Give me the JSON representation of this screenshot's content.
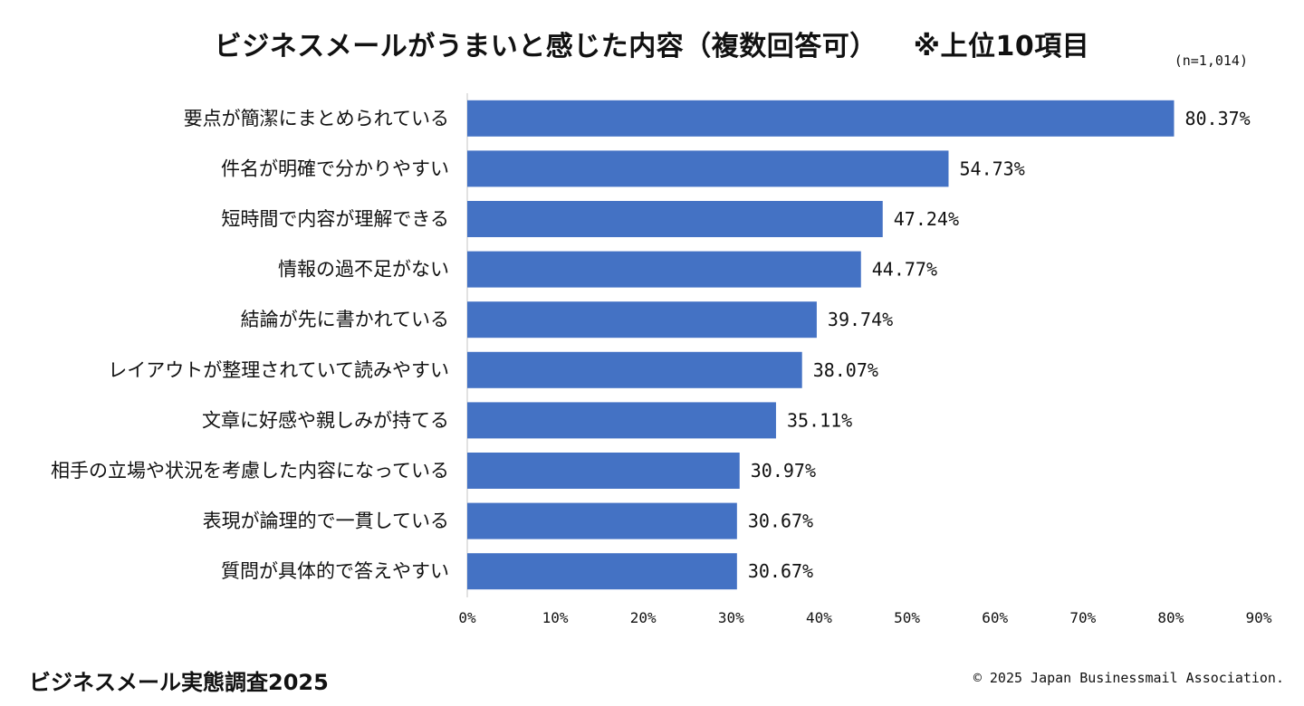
{
  "chart_data": {
    "type": "bar",
    "orientation": "horizontal",
    "title": "ビジネスメールがうまいと感じた内容（複数回答可）",
    "subtitle": "※上位10項目",
    "sample_size": "(n=1,014)",
    "categories": [
      "要点が簡潔にまとめられている",
      "件名が明確で分かりやすい",
      "短時間で内容が理解できる",
      "情報の過不足がない",
      "結論が先に書かれている",
      "レイアウトが整理されていて読みやすい",
      "文章に好感や親しみが持てる",
      "相手の立場や状況を考慮した内容になっている",
      "表現が論理的で一貫している",
      "質問が具体的で答えやすい"
    ],
    "values": [
      80.37,
      54.73,
      47.24,
      44.77,
      39.74,
      38.07,
      35.11,
      30.97,
      30.67,
      30.67
    ],
    "value_labels": [
      "80.37%",
      "54.73%",
      "47.24%",
      "44.77%",
      "39.74%",
      "38.07%",
      "35.11%",
      "30.97%",
      "30.67%",
      "30.67%"
    ],
    "xlim": [
      0,
      90
    ],
    "xticks": [
      0,
      10,
      20,
      30,
      40,
      50,
      60,
      70,
      80,
      90
    ],
    "xtick_labels": [
      "0%",
      "10%",
      "20%",
      "30%",
      "40%",
      "50%",
      "60%",
      "70%",
      "80%",
      "90%"
    ],
    "bar_color": "#4472c4",
    "grid": false,
    "legend": "none"
  },
  "footer": {
    "source": "ビジネスメール実態調査2025",
    "copyright": "© 2025 Japan Businessmail Association."
  }
}
